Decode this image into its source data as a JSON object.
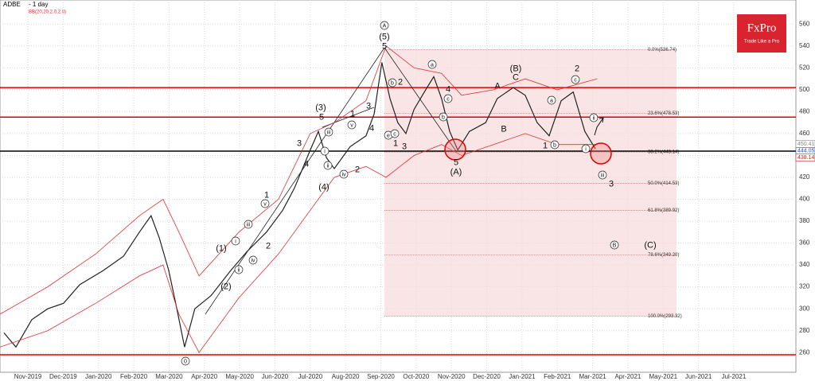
{
  "chart_data": {
    "type": "line",
    "title": "ADBE",
    "subtitle": "- 1 day",
    "indicator": "BB(20,20,2.0,2.0)",
    "logo": "FxPro",
    "tagline": "Trade Like a Pro",
    "xlim": [
      -0.79,
      21.76
    ],
    "ylim": [
      242,
      582
    ],
    "grid": true,
    "xticks": [
      {
        "value": 0,
        "label": "Nov-2019"
      },
      {
        "value": 1,
        "label": "Dec-2019"
      },
      {
        "value": 2,
        "label": "Jan-2020"
      },
      {
        "value": 3,
        "label": "Feb-2020"
      },
      {
        "value": 4,
        "label": "Mar-2020"
      },
      {
        "value": 5,
        "label": "Apr-2020"
      },
      {
        "value": 6,
        "label": "May-2020"
      },
      {
        "value": 7,
        "label": "Jun-2020"
      },
      {
        "value": 8,
        "label": "Jul-2020"
      },
      {
        "value": 9,
        "label": "Aug-2020"
      },
      {
        "value": 10,
        "label": "Sep-2020"
      },
      {
        "value": 11,
        "label": "Oct-2020"
      },
      {
        "value": 12,
        "label": "Nov-2020"
      },
      {
        "value": 13,
        "label": "Dec-2020"
      },
      {
        "value": 14,
        "label": "Jan-2021"
      },
      {
        "value": 15,
        "label": "Feb-2021"
      },
      {
        "value": 16,
        "label": "Mar-2021"
      },
      {
        "value": 17,
        "label": "Apr-2021"
      },
      {
        "value": 18,
        "label": "May-2021"
      },
      {
        "value": 19,
        "label": "Jun-2021"
      },
      {
        "value": 20,
        "label": "Jul-2021"
      }
    ],
    "yticks": [
      260,
      280,
      300,
      320,
      340,
      360,
      380,
      400,
      420,
      440,
      460,
      480,
      500,
      520,
      540,
      560
    ],
    "series": [
      {
        "name": "ADBE",
        "color": "#222222",
        "x": [
          -0.68,
          -0.34,
          0.11,
          0.56,
          1.01,
          1.47,
          2.14,
          2.71,
          3.16,
          3.49,
          3.72,
          3.99,
          4.22,
          4.44,
          4.73,
          5.19,
          5.75,
          6.2,
          6.76,
          7.22,
          7.55,
          8.0,
          8.23,
          8.46,
          8.68,
          9.13,
          9.58,
          9.81,
          10.03,
          10.26,
          10.48,
          10.71,
          10.94,
          11.27,
          11.5,
          11.72,
          11.95,
          12.18,
          12.51,
          12.97,
          13.3,
          13.75,
          14.09,
          14.43,
          14.77,
          15.11,
          15.45,
          15.78,
          16.08
        ],
        "values": [
          278,
          265,
          290,
          300,
          305,
          322,
          335,
          348,
          370,
          385,
          365,
          335,
          300,
          265,
          300,
          312,
          335,
          352,
          370,
          390,
          410,
          445,
          462,
          438,
          428,
          448,
          458,
          478,
          525,
          492,
          470,
          460,
          482,
          500,
          512,
          492,
          462,
          445,
          462,
          470,
          492,
          502,
          495,
          470,
          458,
          490,
          498,
          462,
          446
        ]
      },
      {
        "name": "BB upper",
        "color": "#e03030",
        "x": [
          -0.79,
          0.56,
          1.92,
          3.16,
          3.83,
          4.28,
          4.85,
          5.98,
          7.1,
          8.0,
          8.68,
          9.58,
          10.15,
          10.94,
          11.72,
          12.29,
          13.19,
          14.09,
          15.0,
          16.12
        ],
        "values": [
          295,
          320,
          350,
          385,
          400,
          370,
          330,
          370,
          400,
          460,
          470,
          490,
          540,
          520,
          515,
          495,
          500,
          510,
          500,
          510
        ]
      },
      {
        "name": "BB lower",
        "color": "#e03030",
        "x": [
          -0.79,
          0.56,
          1.92,
          3.16,
          3.83,
          4.28,
          4.85,
          5.98,
          7.1,
          8.0,
          8.68,
          9.58,
          10.15,
          10.94,
          11.72,
          12.29,
          13.19,
          14.09,
          15.0,
          16.12
        ],
        "values": [
          265,
          280,
          305,
          330,
          340,
          295,
          260,
          310,
          350,
          390,
          420,
          430,
          420,
          440,
          450,
          440,
          450,
          460,
          450,
          450
        ]
      }
    ],
    "levels": [
      {
        "value": 502,
        "color": "#e00000"
      },
      {
        "value": 475,
        "color": "#e00000"
      },
      {
        "value": 258,
        "color": "#e00000"
      },
      {
        "value": 444,
        "color": "#000000"
      }
    ],
    "fib_levels": [
      {
        "value": 536.74,
        "label": "0.0%(536.74)"
      },
      {
        "value": 478.53,
        "label": "23.6%(478.53)"
      },
      {
        "value": 443.14,
        "label": "38.2%(443.14)"
      },
      {
        "value": 414.53,
        "label": "50.0%(414.53)"
      },
      {
        "value": 389.92,
        "label": "61.8%(389.92)"
      },
      {
        "value": 349.2,
        "label": "78.6%(349.20)"
      },
      {
        "value": 293.32,
        "label": "100.0%(293.32)"
      }
    ],
    "price_labels": [
      450.41,
      444.05,
      438.14
    ],
    "price_label_colors": [
      "#888888",
      "#3050b0",
      "#d02020"
    ],
    "annotations": [
      "A",
      "(5)",
      "5",
      "2",
      "b",
      "a",
      "4",
      "c",
      "b",
      "(B)",
      "C",
      "A",
      "B",
      "2",
      "c",
      "a",
      "b",
      "1",
      "ii",
      "i",
      "iii",
      "3",
      "B",
      "(C)",
      "1",
      "3",
      "e",
      "c",
      "5",
      "(A)",
      "(3)",
      "5",
      "3",
      "4",
      "(4)",
      "i",
      "iii",
      "ii",
      "iv",
      "v",
      "1",
      "3",
      "4",
      "2",
      "1",
      "v",
      "iii",
      "i",
      "ii",
      "iv",
      "2",
      "(1)",
      "(2)",
      "0"
    ]
  }
}
